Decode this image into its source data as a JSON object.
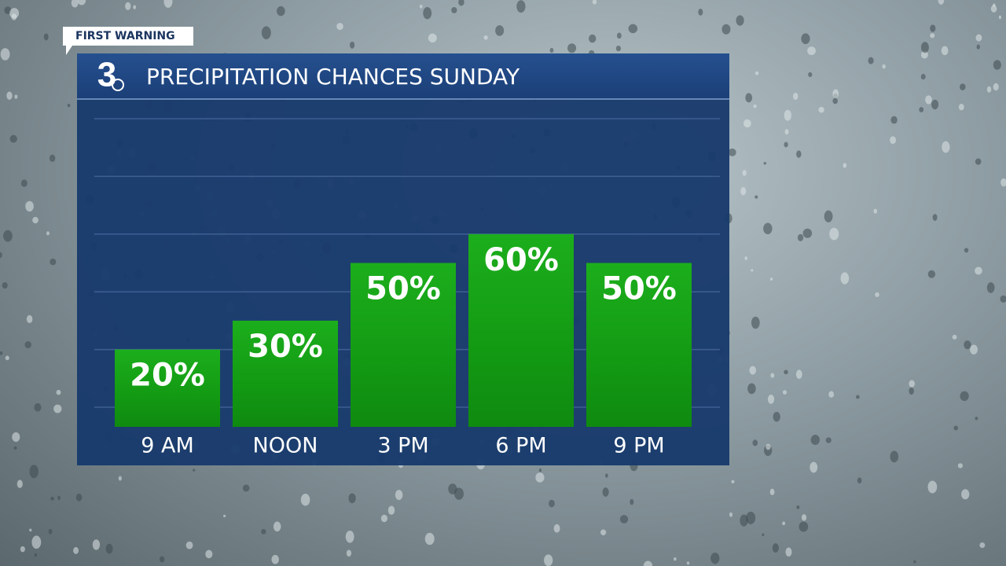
{
  "header": {
    "tag": "FIRST WARNING",
    "logo": "3"
  },
  "chart_data": {
    "type": "bar",
    "title": "PRECIPITATION CHANCES SUNDAY",
    "categories": [
      "9 AM",
      "NOON",
      "3 PM",
      "6 PM",
      "9 PM"
    ],
    "values": [
      20,
      30,
      50,
      60,
      50
    ],
    "value_labels": [
      "20%",
      "30%",
      "50%",
      "60%",
      "50%"
    ],
    "color": "#14a014",
    "ylim": [
      0,
      100
    ],
    "yticks": [
      0,
      20,
      40,
      60,
      80,
      100
    ],
    "grid": true
  }
}
